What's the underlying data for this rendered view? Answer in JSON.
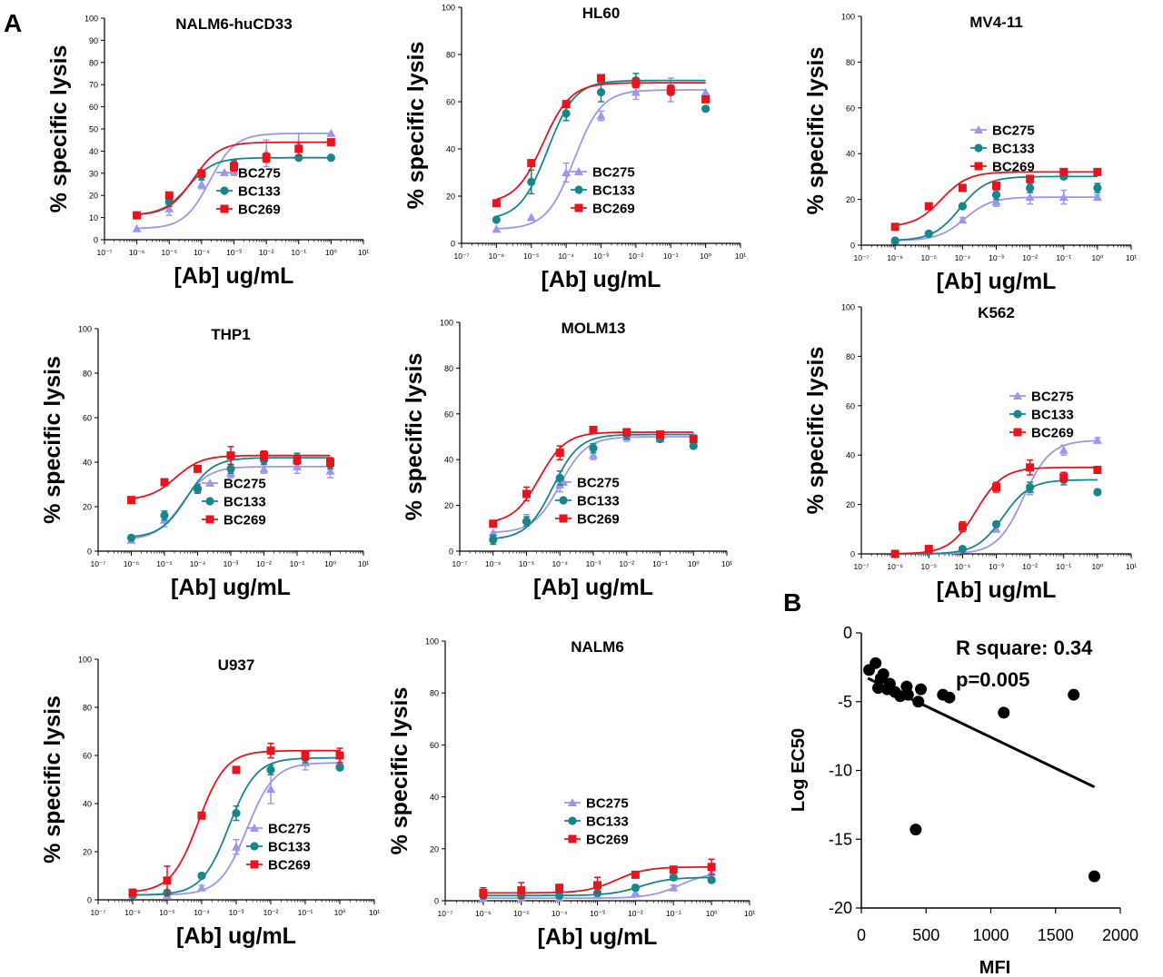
{
  "figure": {
    "panel_a_label": "A",
    "panel_b_label": "B",
    "colors": {
      "BC275": "#9a97f0",
      "BC133": "#17868a",
      "BC269": "#e8141b",
      "axis": "#000000"
    }
  },
  "chart_data": [
    {
      "type": "scatter",
      "panel": "A",
      "title": "NALM6-huCD33",
      "xlabel": "[Ab] ug/mL",
      "ylabel": "% specific lysis",
      "xscale": "log10",
      "xlim": [
        1e-07,
        10
      ],
      "ylim": [
        0,
        100
      ],
      "yticks": [
        "0",
        "10",
        "20",
        "30",
        "40",
        "50",
        "60",
        "70",
        "80",
        "90",
        "100"
      ],
      "xticks": [
        "10⁻⁷",
        "10⁻⁶",
        "10⁻⁵",
        "10⁻⁴",
        "10⁻³",
        "10⁻²",
        "10⁻¹",
        "10⁰",
        "10¹"
      ],
      "legend": "center-right",
      "x": [
        1e-06,
        1e-05,
        0.0001,
        0.001,
        0.01,
        0.1,
        1
      ],
      "series": [
        {
          "name": "BC275",
          "marker": "triangle",
          "values": [
            5,
            14,
            25,
            31,
            39,
            43,
            48
          ],
          "errors": [
            0,
            3,
            2,
            2,
            6,
            5,
            0
          ]
        },
        {
          "name": "BC133",
          "marker": "circle",
          "values": [
            11,
            17,
            29,
            34,
            37,
            37,
            37
          ],
          "errors": [
            0,
            2,
            2,
            2,
            2,
            0,
            0
          ]
        },
        {
          "name": "BC269",
          "marker": "square",
          "values": [
            11,
            20,
            30,
            33,
            37,
            41,
            44
          ],
          "errors": [
            0,
            1,
            1,
            2,
            2,
            3,
            1
          ]
        }
      ]
    },
    {
      "type": "scatter",
      "panel": "A",
      "title": "HL60",
      "xlabel": "[Ab] ug/mL",
      "ylabel": "% specific lysis",
      "xscale": "log10",
      "xlim": [
        1e-07,
        10
      ],
      "ylim": [
        0,
        100
      ],
      "yticks": [
        "0",
        "20",
        "40",
        "60",
        "80",
        "100"
      ],
      "xticks": [
        "10⁻⁷",
        "10⁻⁶",
        "10⁻⁵",
        "10⁻⁴",
        "10⁻³",
        "10⁻²",
        "10⁻¹",
        "10⁰",
        "10¹"
      ],
      "legend": "center-right",
      "x": [
        1e-06,
        1e-05,
        0.0001,
        0.001,
        0.01,
        0.1,
        1
      ],
      "series": [
        {
          "name": "BC275",
          "marker": "triangle",
          "values": [
            6,
            11,
            30,
            54,
            64,
            65,
            64
          ],
          "errors": [
            0,
            0,
            4,
            2,
            3,
            5,
            0
          ]
        },
        {
          "name": "BC133",
          "marker": "circle",
          "values": [
            10,
            26,
            55,
            64,
            69,
            64,
            57
          ],
          "errors": [
            0,
            5,
            3,
            4,
            3,
            0,
            0
          ]
        },
        {
          "name": "BC269",
          "marker": "square",
          "values": [
            17,
            34,
            59,
            70,
            68,
            65,
            61
          ],
          "errors": [
            0,
            1,
            1,
            1,
            2,
            2,
            1
          ]
        }
      ]
    },
    {
      "type": "scatter",
      "panel": "A",
      "title": "MV4-11",
      "xlabel": "[Ab] ug/mL",
      "ylabel": "% specific lysis",
      "xscale": "log10",
      "xlim": [
        1e-07,
        10
      ],
      "ylim": [
        0,
        100
      ],
      "yticks": [
        "0",
        "20",
        "40",
        "60",
        "80",
        "100"
      ],
      "xticks": [
        "10⁻⁷",
        "10⁻⁶",
        "10⁻⁵",
        "10⁻⁴",
        "10⁻³",
        "10⁻²",
        "10⁻¹",
        "10⁰",
        "10¹"
      ],
      "legend": "upper-center",
      "x": [
        1e-06,
        1e-05,
        0.0001,
        0.001,
        0.01,
        0.1,
        1
      ],
      "series": [
        {
          "name": "BC275",
          "marker": "triangle",
          "values": [
            2,
            5,
            11,
            19,
            21,
            21,
            21
          ],
          "errors": [
            0,
            1,
            1,
            2,
            3,
            3,
            1
          ]
        },
        {
          "name": "BC133",
          "marker": "circle",
          "values": [
            2,
            5,
            17,
            22,
            25,
            30,
            25
          ],
          "errors": [
            0,
            0,
            1,
            2,
            2,
            1,
            2
          ]
        },
        {
          "name": "BC269",
          "marker": "square",
          "values": [
            8,
            17,
            25,
            26,
            29,
            32,
            32
          ],
          "errors": [
            0,
            1,
            1,
            1,
            1,
            1,
            1
          ]
        }
      ]
    },
    {
      "type": "scatter",
      "panel": "A",
      "title": "THP1",
      "xlabel": "[Ab] ug/mL",
      "ylabel": "% specific lysis",
      "xscale": "log10",
      "xlim": [
        1e-07,
        10
      ],
      "ylim": [
        0,
        100
      ],
      "yticks": [
        "0",
        "20",
        "40",
        "60",
        "80",
        "100"
      ],
      "xticks": [
        "10⁻⁷",
        "10⁻⁶",
        "10⁻⁵",
        "10⁻⁴",
        "10⁻³",
        "10⁻²",
        "10⁻¹",
        "10⁰",
        "10¹"
      ],
      "legend": "center-right",
      "x": [
        1e-06,
        1e-05,
        0.0001,
        0.001,
        0.01,
        0.1,
        1
      ],
      "series": [
        {
          "name": "BC275",
          "marker": "triangle",
          "values": [
            5,
            14,
            28,
            35,
            37,
            38,
            36
          ],
          "errors": [
            0,
            3,
            2,
            2,
            2,
            3,
            3
          ]
        },
        {
          "name": "BC133",
          "marker": "circle",
          "values": [
            6,
            16,
            28,
            37,
            41,
            42,
            39
          ],
          "errors": [
            0,
            2,
            2,
            2,
            2,
            2,
            2
          ]
        },
        {
          "name": "BC269",
          "marker": "square",
          "values": [
            23,
            31,
            37,
            43,
            43,
            41,
            40
          ],
          "errors": [
            0,
            1,
            1,
            4,
            2,
            2,
            2
          ]
        }
      ]
    },
    {
      "type": "scatter",
      "panel": "A",
      "title": "MOLM13",
      "xlabel": "[Ab] ug/mL",
      "ylabel": "% specific lysis",
      "xscale": "log10",
      "xlim": [
        1e-07,
        10
      ],
      "ylim": [
        0,
        100
      ],
      "yticks": [
        "0",
        "20",
        "40",
        "60",
        "80",
        "100"
      ],
      "xticks": [
        "10⁻⁷",
        "10⁻⁶",
        "10⁻⁵",
        "10⁻⁴",
        "10⁻³",
        "10⁻²",
        "10⁻¹",
        "10⁰",
        "10¹"
      ],
      "legend": "center-right",
      "x": [
        1e-06,
        1e-05,
        0.0001,
        0.001,
        0.01,
        0.1,
        1
      ],
      "series": [
        {
          "name": "BC275",
          "marker": "triangle",
          "values": [
            8,
            14,
            29,
            42,
            50,
            49,
            50
          ],
          "errors": [
            0,
            2,
            3,
            2,
            2,
            1,
            1
          ]
        },
        {
          "name": "BC133",
          "marker": "circle",
          "values": [
            5,
            13,
            32,
            45,
            51,
            49,
            46
          ],
          "errors": [
            2,
            2,
            3,
            2,
            2,
            1,
            1
          ]
        },
        {
          "name": "BC269",
          "marker": "square",
          "values": [
            12,
            25,
            43,
            53,
            52,
            51,
            49
          ],
          "errors": [
            0,
            3,
            3,
            1,
            1,
            1,
            1
          ]
        }
      ]
    },
    {
      "type": "scatter",
      "panel": "A",
      "title": "K562",
      "xlabel": "[Ab] ug/mL",
      "ylabel": "% specific lysis",
      "xscale": "log10",
      "xlim": [
        1e-07,
        10
      ],
      "ylim": [
        0,
        100
      ],
      "yticks": [
        "0",
        "20",
        "40",
        "60",
        "80",
        "100"
      ],
      "xticks": [
        "10⁻⁷",
        "10⁻⁶",
        "10⁻⁵",
        "10⁻⁴",
        "10⁻³",
        "10⁻²",
        "10⁻¹",
        "10⁰",
        "10¹"
      ],
      "legend": "upper-center",
      "x": [
        1e-06,
        1e-05,
        0.0001,
        0.001,
        0.01,
        0.1,
        1
      ],
      "series": [
        {
          "name": "BC275",
          "marker": "triangle",
          "values": [
            0,
            1,
            2,
            10,
            26,
            42,
            46
          ],
          "errors": [
            0,
            0,
            0,
            1,
            2,
            2,
            1
          ]
        },
        {
          "name": "BC133",
          "marker": "circle",
          "values": [
            0,
            1,
            2,
            12,
            27,
            30,
            25
          ],
          "errors": [
            0,
            0,
            0,
            1,
            2,
            2,
            1
          ]
        },
        {
          "name": "BC269",
          "marker": "square",
          "values": [
            0,
            2,
            11,
            27,
            35,
            31,
            34
          ],
          "errors": [
            0,
            1,
            2,
            2,
            3,
            2,
            1
          ]
        }
      ]
    },
    {
      "type": "scatter",
      "panel": "A",
      "title": "U937",
      "xlabel": "[Ab] ug/mL",
      "ylabel": "% specific lysis",
      "xscale": "log10",
      "xlim": [
        1e-07,
        10
      ],
      "ylim": [
        0,
        100
      ],
      "yticks": [
        "0",
        "20",
        "40",
        "60",
        "80",
        "100"
      ],
      "xticks": [
        "10⁻⁷",
        "10⁻⁶",
        "10⁻⁵",
        "10⁻⁴",
        "10⁻³",
        "10⁻²",
        "10⁻¹",
        "10⁰",
        "10¹"
      ],
      "legend": "center-right",
      "x": [
        1e-06,
        1e-05,
        0.0001,
        0.001,
        0.01,
        0.1,
        1
      ],
      "series": [
        {
          "name": "BC275",
          "marker": "triangle",
          "values": [
            2,
            2,
            5,
            22,
            46,
            57,
            57
          ],
          "errors": [
            0,
            0,
            1,
            3,
            6,
            3,
            2
          ]
        },
        {
          "name": "BC133",
          "marker": "circle",
          "values": [
            2,
            3,
            10,
            36,
            54,
            59,
            55
          ],
          "errors": [
            0,
            0,
            1,
            3,
            2,
            2,
            1
          ]
        },
        {
          "name": "BC269",
          "marker": "square",
          "values": [
            3,
            8,
            35,
            54,
            62,
            60,
            60
          ],
          "errors": [
            0,
            6,
            1,
            1,
            3,
            2,
            3
          ]
        }
      ]
    },
    {
      "type": "scatter",
      "panel": "A",
      "title": "NALM6",
      "xlabel": "[Ab] ug/mL",
      "ylabel": "% specific lysis",
      "xscale": "log10",
      "xlim": [
        1e-07,
        10
      ],
      "ylim": [
        0,
        100
      ],
      "yticks": [
        "0",
        "20",
        "40",
        "60",
        "80",
        "100"
      ],
      "xticks": [
        "10⁻⁷",
        "10⁻⁶",
        "10⁻⁵",
        "10⁻⁴",
        "10⁻³",
        "10⁻²",
        "10⁻¹",
        "10⁰",
        "10¹"
      ],
      "legend": "lower-center",
      "x": [
        1e-06,
        1e-05,
        0.0001,
        0.001,
        0.01,
        0.1,
        1
      ],
      "series": [
        {
          "name": "BC275",
          "marker": "triangle",
          "values": [
            1,
            1,
            1,
            2,
            3,
            5,
            11
          ],
          "errors": [
            0,
            0,
            0,
            0,
            1,
            1,
            1
          ]
        },
        {
          "name": "BC133",
          "marker": "circle",
          "values": [
            2,
            2,
            2,
            3,
            5,
            9,
            8
          ],
          "errors": [
            0,
            0,
            0,
            1,
            1,
            1,
            1
          ]
        },
        {
          "name": "BC269",
          "marker": "square",
          "values": [
            3,
            4,
            5,
            6,
            10,
            12,
            13
          ],
          "errors": [
            2,
            3,
            1,
            3,
            1,
            1,
            3
          ]
        }
      ]
    },
    {
      "type": "scatter",
      "panel": "B",
      "title": "",
      "xlabel": "MFI",
      "ylabel": "Log EC50",
      "xlim": [
        0,
        2000
      ],
      "ylim": [
        -20,
        0
      ],
      "xticks": [
        "0",
        "500",
        "1000",
        "1500",
        "2000"
      ],
      "yticks": [
        "0",
        "-5",
        "-10",
        "-15",
        "-20"
      ],
      "annotations": [
        "R square: 0.34",
        "p=0.005"
      ],
      "points": [
        [
          60,
          -2.7
        ],
        [
          110,
          -2.2
        ],
        [
          130,
          -4.0
        ],
        [
          150,
          -3.3
        ],
        [
          170,
          -3.0
        ],
        [
          200,
          -4.1
        ],
        [
          220,
          -3.7
        ],
        [
          260,
          -4.3
        ],
        [
          300,
          -4.6
        ],
        [
          350,
          -3.9
        ],
        [
          360,
          -4.5
        ],
        [
          420,
          -14.3
        ],
        [
          440,
          -5.0
        ],
        [
          460,
          -4.1
        ],
        [
          630,
          -4.5
        ],
        [
          680,
          -4.7
        ],
        [
          1100,
          -5.8
        ],
        [
          1640,
          -4.5
        ],
        [
          1800,
          -17.7
        ]
      ],
      "regression": {
        "x": [
          50,
          1800
        ],
        "y": [
          -3.3,
          -11.2
        ]
      }
    }
  ]
}
